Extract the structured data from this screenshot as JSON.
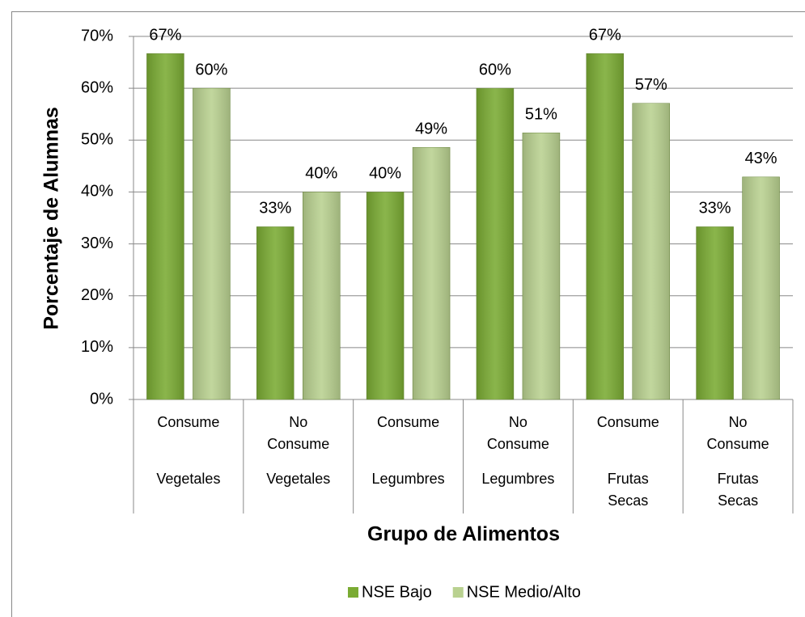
{
  "chart_data": {
    "type": "bar",
    "categories": [
      "Consume",
      "No\nConsume",
      "Consume",
      "No\nConsume",
      "Consume",
      "No\nConsume"
    ],
    "groups": [
      "Vegetales",
      "Vegetales",
      "Legumbres",
      "Legumbres",
      "Frutas\nSecas",
      "Frutas\nSecas"
    ],
    "series": [
      {
        "name": "NSE Bajo",
        "color": "#7aab33",
        "values": [
          66.7,
          33.3,
          40,
          60,
          66.7,
          33.3
        ],
        "value_labels": [
          "67%",
          "33%",
          "40%",
          "60%",
          "67%",
          "33%"
        ]
      },
      {
        "name": "NSE Medio/Alto",
        "color": "#b9d190",
        "values": [
          60,
          40,
          48.6,
          51.4,
          57.1,
          42.9
        ],
        "value_labels": [
          "60%",
          "40%",
          "49%",
          "51%",
          "57%",
          "43%"
        ]
      }
    ],
    "xlabel": "Grupo de Alimentos",
    "ylabel": "Porcentaje de Alumnas",
    "ylim": [
      0,
      70
    ],
    "yticks": [
      {
        "value": 0,
        "label": "0%"
      },
      {
        "value": 10,
        "label": "10%"
      },
      {
        "value": 20,
        "label": "20%"
      },
      {
        "value": 30,
        "label": "30%"
      },
      {
        "value": 40,
        "label": "40%"
      },
      {
        "value": 50,
        "label": "50%"
      },
      {
        "value": 60,
        "label": "60%"
      },
      {
        "value": 70,
        "label": "70%"
      }
    ],
    "grid": true,
    "legend": "bottom"
  }
}
